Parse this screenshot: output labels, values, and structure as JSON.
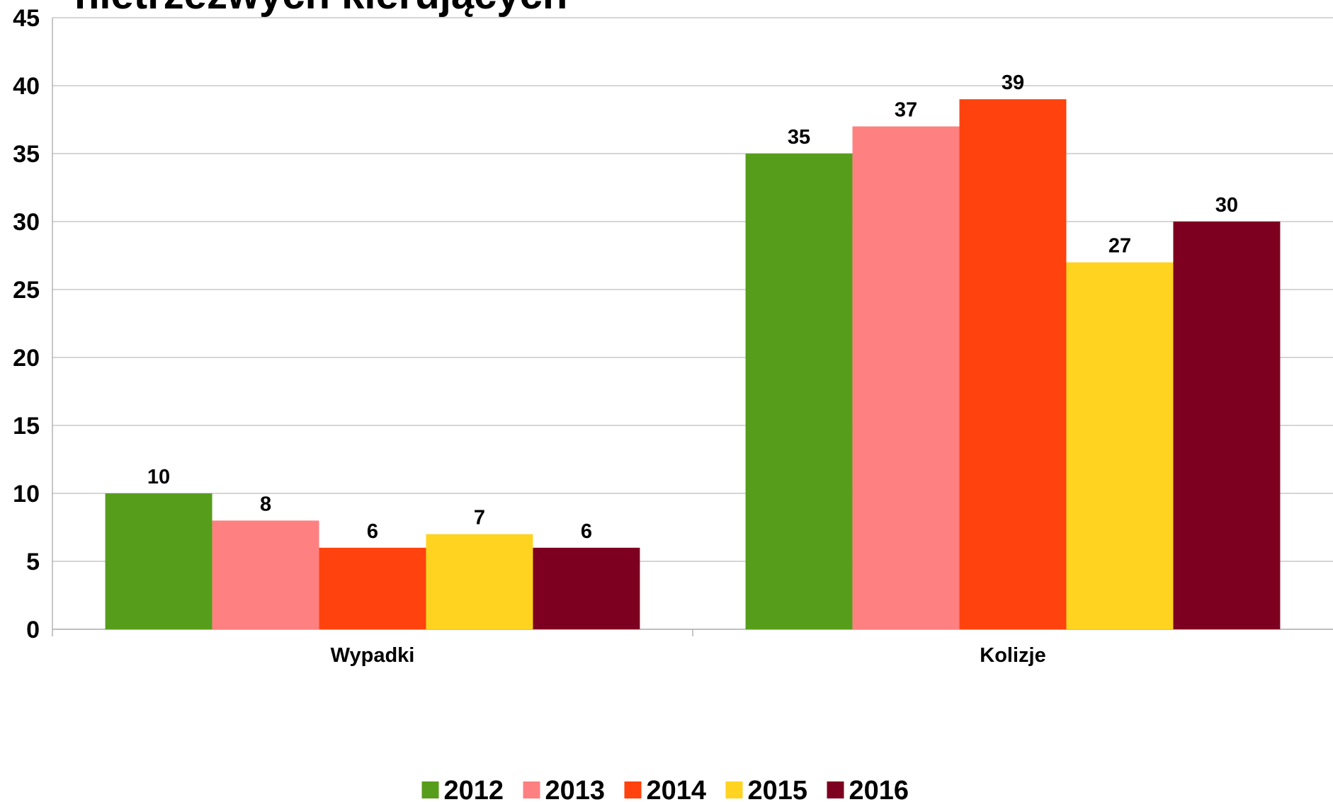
{
  "chart_data": {
    "type": "bar",
    "title": "nietrzeźwych kierujących",
    "categories": [
      "Wypadki",
      "Kolizje"
    ],
    "series": [
      {
        "name": "2012",
        "color": "#579d1c",
        "values": [
          10,
          35
        ]
      },
      {
        "name": "2013",
        "color": "#ff8080",
        "values": [
          8,
          37
        ]
      },
      {
        "name": "2014",
        "color": "#ff420e",
        "values": [
          6,
          39
        ]
      },
      {
        "name": "2015",
        "color": "#ffd320",
        "values": [
          7,
          27
        ]
      },
      {
        "name": "2016",
        "color": "#7e0021",
        "values": [
          6,
          30
        ]
      }
    ],
    "ylim": [
      0,
      45
    ],
    "yticks": [
      0,
      5,
      10,
      15,
      20,
      25,
      30,
      35,
      40,
      45
    ],
    "grid": true,
    "legend": "bottom"
  }
}
